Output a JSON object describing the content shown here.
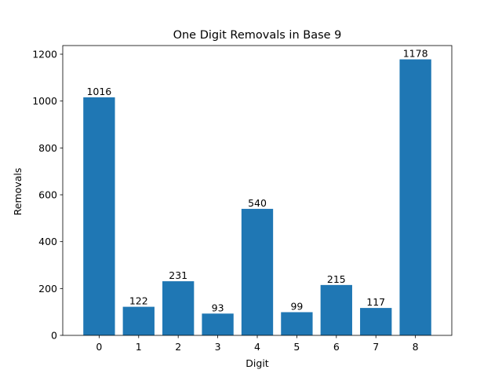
{
  "chart_data": {
    "type": "bar",
    "title": "One Digit Removals in Base 9",
    "xlabel": "Digit",
    "ylabel": "Removals",
    "categories": [
      "0",
      "1",
      "2",
      "3",
      "4",
      "5",
      "6",
      "7",
      "8"
    ],
    "values": [
      1016,
      122,
      231,
      93,
      540,
      99,
      215,
      117,
      1178
    ],
    "data_labels": [
      "1016",
      "122",
      "231",
      "93",
      "540",
      "99",
      "215",
      "117",
      "1178"
    ],
    "ylim": [
      0,
      1236.9
    ],
    "yticks": [
      0,
      200,
      400,
      600,
      800,
      1000,
      1200
    ],
    "grid": false,
    "legend": "none",
    "bar_color": "#1f77b4"
  }
}
